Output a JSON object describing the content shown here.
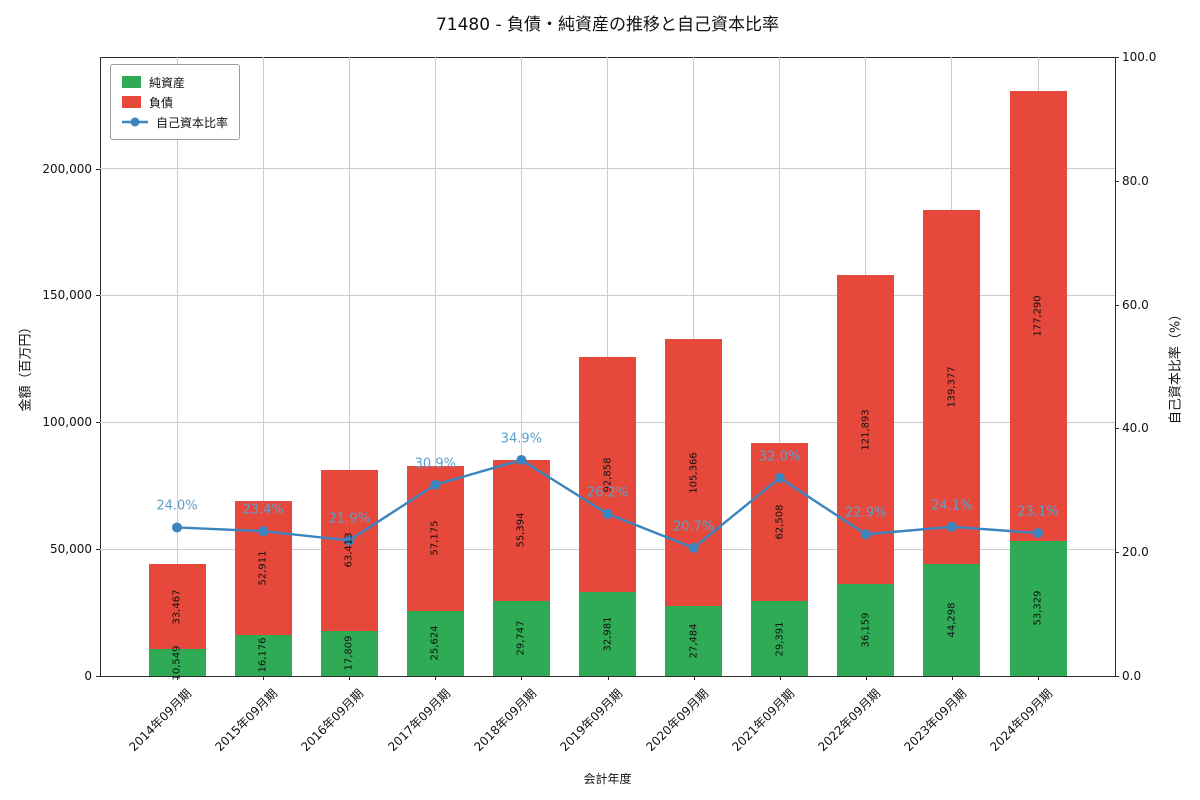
{
  "title": "71480 - 負債・純資産の推移と自己資本比率",
  "axes": {
    "left_label": "金額（百万円）",
    "right_label": "自己資本比率（%）",
    "x_label": "会計年度",
    "left_ticks": [
      "0",
      "50,000",
      "100,000",
      "150,000",
      "200,000"
    ],
    "left_tick_values": [
      0,
      50000,
      100000,
      150000,
      200000
    ],
    "right_ticks": [
      "0.0",
      "20.0",
      "40.0",
      "60.0",
      "80.0",
      "100.0"
    ],
    "right_tick_values": [
      0,
      20,
      40,
      60,
      80,
      100
    ]
  },
  "chart_data": {
    "type": "bar",
    "subtype": "stacked-bars-with-line",
    "title": "71480 - 負債・純資産の推移と自己資本比率",
    "xlabel": "会計年度",
    "ylabel": "金額（百万円）",
    "y2label": "自己資本比率（%）",
    "ylim": [
      0,
      244000
    ],
    "y2lim": [
      0,
      100
    ],
    "grid": true,
    "legend_position": "upper-left",
    "categories": [
      "2014年09月期",
      "2015年09月期",
      "2016年09月期",
      "2017年09月期",
      "2018年09月期",
      "2019年09月期",
      "2020年09月期",
      "2021年09月期",
      "2022年09月期",
      "2023年09月期",
      "2024年09月期"
    ],
    "series": [
      {
        "name": "純資産",
        "color": "#2eab54",
        "values": [
          10549,
          16176,
          17809,
          25624,
          29747,
          32981,
          27484,
          29391,
          36159,
          44298,
          53329
        ]
      },
      {
        "name": "負債",
        "color": "#e6493b",
        "values": [
          33467,
          52911,
          63413,
          57175,
          55394,
          92858,
          105366,
          62508,
          121893,
          139377,
          177290
        ]
      }
    ],
    "line": {
      "name": "自己資本比率",
      "color": "#3a85c0",
      "label_color": "#5b9fce",
      "values": [
        24.0,
        23.4,
        21.9,
        30.9,
        34.9,
        26.2,
        20.7,
        32.0,
        22.9,
        24.1,
        23.1
      ],
      "labels": [
        "24.0%",
        "23.4%",
        "21.9%",
        "30.9%",
        "34.9%",
        "26.2%",
        "20.7%",
        "32.0%",
        "22.9%",
        "24.1%",
        "23.1%"
      ]
    }
  }
}
